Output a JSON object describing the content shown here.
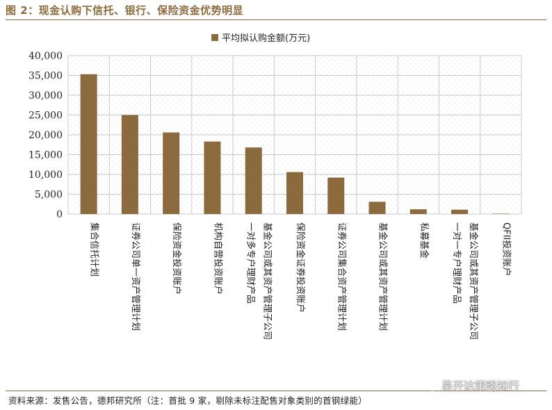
{
  "figure_title": "图 2：现金认购下信托、银行、保险资金优势明显",
  "source_note": "资料来源：发售公告，德邦研究所（注：首批 9 家，剔除未标注配售对象类别的首钢绿能）",
  "watermark": {
    "text": "吴开达策略知行",
    "icon": "wechat-icon"
  },
  "colors": {
    "bar": "#8B6B3D",
    "accent": "#8B6B3D",
    "grid": "#c8c8c8"
  },
  "chart_data": {
    "type": "bar",
    "title": "",
    "xlabel": "",
    "ylabel": "",
    "legend": {
      "position": "top-center"
    },
    "grid": true,
    "ylim": [
      0,
      40000
    ],
    "yticks": [
      0,
      5000,
      10000,
      15000,
      20000,
      25000,
      30000,
      35000,
      40000
    ],
    "ytick_labels": [
      "0",
      "5,000",
      "10,000",
      "15,000",
      "20,000",
      "25,000",
      "30,000",
      "35,000",
      "40,000"
    ],
    "categories": [
      [
        "集合信托计划"
      ],
      [
        "证券公司单一资产管理计划"
      ],
      [
        "保险资金投资账户"
      ],
      [
        "机构自营投资账户"
      ],
      [
        "基金公司或其资产管理子公司",
        "一对多专户理财产品"
      ],
      [
        "保险资金证券投资账户"
      ],
      [
        "证券公司集合资产管理计划"
      ],
      [
        "基金公司或其资产管理计划"
      ],
      [
        "私募基金"
      ],
      [
        "基金公司或其资产管理子公司",
        "一对一专户理财产品"
      ],
      [
        "QFII投资账户"
      ]
    ],
    "series": [
      {
        "name": "平均拟认购金额(万元)",
        "values": [
          35300,
          25000,
          20600,
          18300,
          16800,
          10600,
          9200,
          3100,
          1200,
          1100,
          100
        ]
      }
    ]
  }
}
